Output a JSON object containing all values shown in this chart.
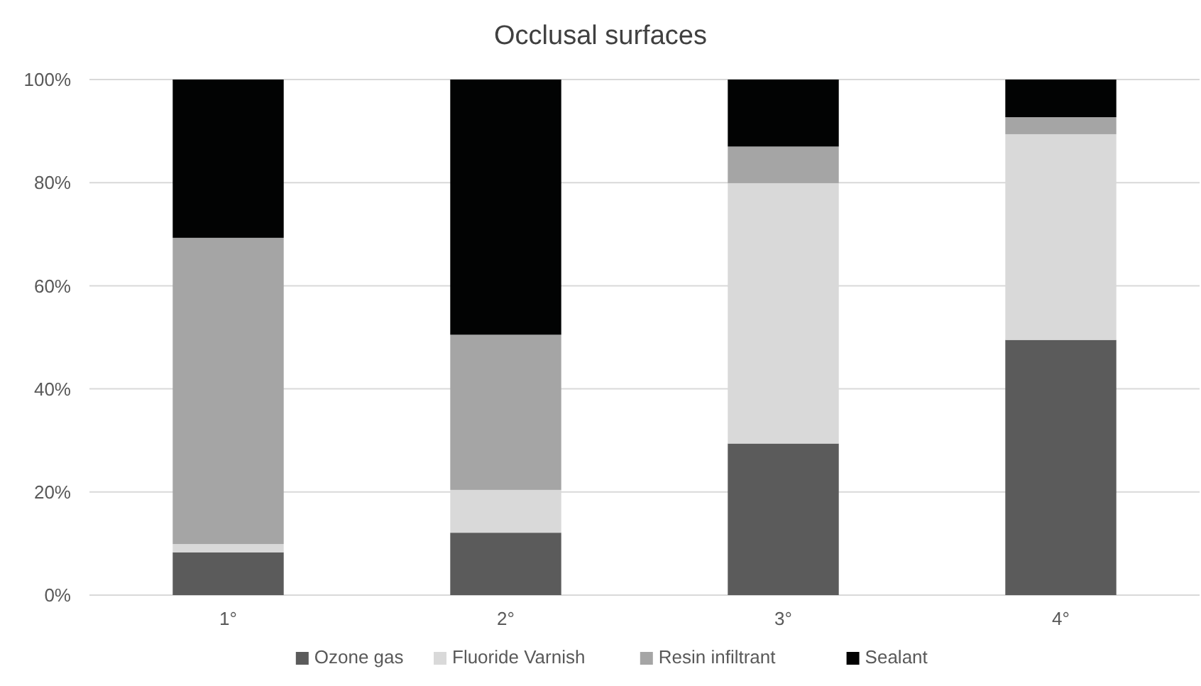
{
  "chart_data": {
    "type": "bar",
    "title": "Occlusal surfaces",
    "stacked": true,
    "categories": [
      "1°",
      "2°",
      "3°",
      "4°"
    ],
    "series": [
      {
        "name": "Ozone gas",
        "color": "#5b5b5b",
        "values": [
          8.3,
          12.1,
          29.4,
          49.5
        ]
      },
      {
        "name": "Fluoride Varnish",
        "color": "#d9d9d9",
        "values": [
          1.6,
          8.3,
          50.5,
          39.9
        ]
      },
      {
        "name": "Resin infiltrant",
        "color": "#a5a5a5",
        "values": [
          59.4,
          30.1,
          7.1,
          3.3
        ]
      },
      {
        "name": "Sealant",
        "color": "#020303",
        "values": [
          30.7,
          49.5,
          13.0,
          7.3
        ]
      }
    ],
    "ylim": [
      0,
      100
    ],
    "yticks": [
      {
        "value": 0,
        "label": "0%"
      },
      {
        "value": 20,
        "label": "20%"
      },
      {
        "value": 40,
        "label": "40%"
      },
      {
        "value": 60,
        "label": "60%"
      },
      {
        "value": 80,
        "label": "80%"
      },
      {
        "value": 100,
        "label": "100%"
      }
    ],
    "grid": "y",
    "legend": "bottom"
  }
}
